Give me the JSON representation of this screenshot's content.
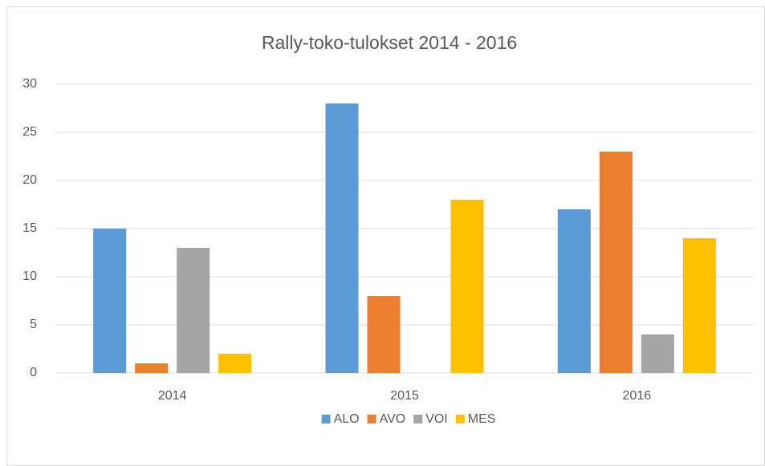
{
  "chart_data": {
    "type": "bar",
    "title": "Rally-toko-tulokset 2014 - 2016",
    "categories": [
      "2014",
      "2015",
      "2016"
    ],
    "series": [
      {
        "name": "ALO",
        "color": "#5b9bd5",
        "values": [
          15,
          28,
          17
        ]
      },
      {
        "name": "AVO",
        "color": "#ed7d31",
        "values": [
          1,
          8,
          23
        ]
      },
      {
        "name": "VOI",
        "color": "#a5a5a5",
        "values": [
          13,
          0,
          4
        ]
      },
      {
        "name": "MES",
        "color": "#ffc000",
        "values": [
          2,
          18,
          14
        ]
      }
    ],
    "ylim": [
      0,
      30
    ],
    "yticks": [
      0,
      5,
      10,
      15,
      20,
      25,
      30
    ],
    "grid": true,
    "legend": "bottom"
  }
}
